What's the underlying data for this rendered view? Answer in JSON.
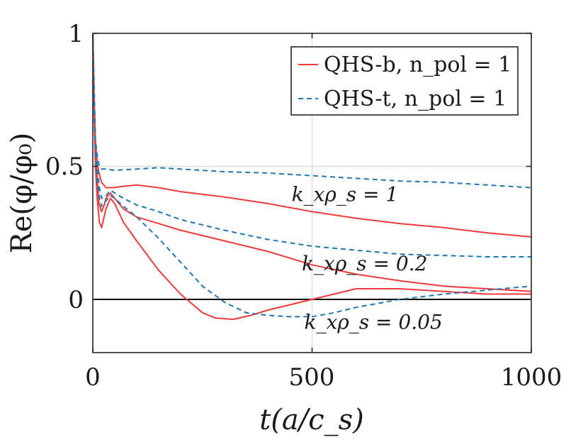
{
  "chart_data": {
    "type": "line",
    "title": "",
    "xlabel": "t(a/c_s)",
    "ylabel": "Re(φ/φ₀)",
    "xlim": [
      0,
      1000
    ],
    "ylim": [
      -0.2,
      1
    ],
    "xticks": [
      0,
      500,
      1000
    ],
    "xtick_labels": [
      "0",
      "500",
      "1000"
    ],
    "yticks": [
      0,
      0.5,
      1
    ],
    "ytick_labels": [
      "0",
      "0.5",
      "1"
    ],
    "grid": true,
    "zero_line": true,
    "legend_position": "top-right",
    "legend": [
      {
        "label": "QHS-b, n_pol = 1",
        "color": "#ef3b3b",
        "style": "solid"
      },
      {
        "label": "QHS-t, n_pol = 1",
        "color": "#1f77b4",
        "style": "dashed"
      }
    ],
    "annotations": [
      {
        "text": "k_xρ_s = 1",
        "x": 575,
        "y": 0.37
      },
      {
        "text": "k_xρ_s = 0.2",
        "x": 620,
        "y": 0.11
      },
      {
        "text": "k_xρ_s = 0.05",
        "x": 640,
        "y": -0.11
      }
    ],
    "series": [
      {
        "name": "QHS-b, k_xρ_s = 1",
        "color": "#ef3b3b",
        "style": "solid",
        "x": [
          0,
          3,
          6,
          10,
          15,
          20,
          30,
          45,
          70,
          100,
          150,
          200,
          300,
          400,
          500,
          600,
          700,
          800,
          900,
          1000
        ],
        "y": [
          1.0,
          0.75,
          0.6,
          0.51,
          0.47,
          0.44,
          0.42,
          0.42,
          0.425,
          0.43,
          0.42,
          0.405,
          0.385,
          0.36,
          0.33,
          0.305,
          0.285,
          0.27,
          0.25,
          0.235
        ]
      },
      {
        "name": "QHS-b, k_xρ_s = 0.2",
        "color": "#ef3b3b",
        "style": "solid",
        "x": [
          0,
          3,
          6,
          10,
          14,
          20,
          25,
          30,
          40,
          50,
          70,
          100,
          150,
          200,
          300,
          400,
          500,
          600,
          700,
          800,
          900,
          1000
        ],
        "y": [
          1.0,
          0.72,
          0.55,
          0.45,
          0.36,
          0.33,
          0.35,
          0.38,
          0.4,
          0.38,
          0.34,
          0.31,
          0.285,
          0.26,
          0.22,
          0.18,
          0.13,
          0.095,
          0.07,
          0.05,
          0.04,
          0.03
        ]
      },
      {
        "name": "QHS-b, k_xρ_s = 0.05",
        "color": "#ef3b3b",
        "style": "solid",
        "x": [
          0,
          3,
          6,
          10,
          15,
          20,
          30,
          40,
          50,
          70,
          100,
          150,
          200,
          250,
          280,
          320,
          360,
          400,
          450,
          500,
          550,
          600,
          700,
          800,
          900,
          1000
        ],
        "y": [
          1.0,
          0.7,
          0.5,
          0.38,
          0.29,
          0.27,
          0.34,
          0.38,
          0.36,
          0.29,
          0.22,
          0.11,
          0.02,
          -0.05,
          -0.07,
          -0.075,
          -0.06,
          -0.04,
          -0.02,
          0.0,
          0.02,
          0.04,
          0.04,
          0.03,
          0.02,
          0.02
        ]
      },
      {
        "name": "QHS-t, k_xρ_s = 1",
        "color": "#1f77b4",
        "style": "dashed",
        "x": [
          0,
          3,
          6,
          10,
          15,
          20,
          30,
          50,
          100,
          150,
          200,
          300,
          400,
          500,
          600,
          700,
          800,
          900,
          1000
        ],
        "y": [
          1.0,
          0.8,
          0.6,
          0.54,
          0.5,
          0.49,
          0.49,
          0.485,
          0.49,
          0.495,
          0.49,
          0.48,
          0.475,
          0.465,
          0.455,
          0.445,
          0.44,
          0.43,
          0.42
        ]
      },
      {
        "name": "QHS-t, k_xρ_s = 0.2",
        "color": "#1f77b4",
        "style": "dashed",
        "x": [
          0,
          3,
          6,
          10,
          15,
          20,
          30,
          40,
          50,
          70,
          100,
          150,
          200,
          300,
          400,
          500,
          600,
          700,
          800,
          900,
          1000
        ],
        "y": [
          1.0,
          0.75,
          0.58,
          0.5,
          0.42,
          0.38,
          0.39,
          0.41,
          0.4,
          0.38,
          0.355,
          0.33,
          0.3,
          0.26,
          0.225,
          0.2,
          0.185,
          0.17,
          0.165,
          0.16,
          0.16
        ]
      },
      {
        "name": "QHS-t, k_xρ_s = 0.05",
        "color": "#1f77b4",
        "style": "dashed",
        "x": [
          0,
          3,
          6,
          10,
          15,
          20,
          30,
          40,
          50,
          70,
          100,
          150,
          200,
          250,
          300,
          350,
          400,
          450,
          500,
          550,
          600,
          700,
          800,
          900,
          1000
        ],
        "y": [
          1.0,
          0.72,
          0.55,
          0.45,
          0.38,
          0.35,
          0.37,
          0.39,
          0.38,
          0.35,
          0.31,
          0.23,
          0.14,
          0.05,
          -0.01,
          -0.05,
          -0.06,
          -0.065,
          -0.065,
          -0.05,
          -0.03,
          0.0,
          0.02,
          0.035,
          0.05
        ]
      }
    ]
  }
}
